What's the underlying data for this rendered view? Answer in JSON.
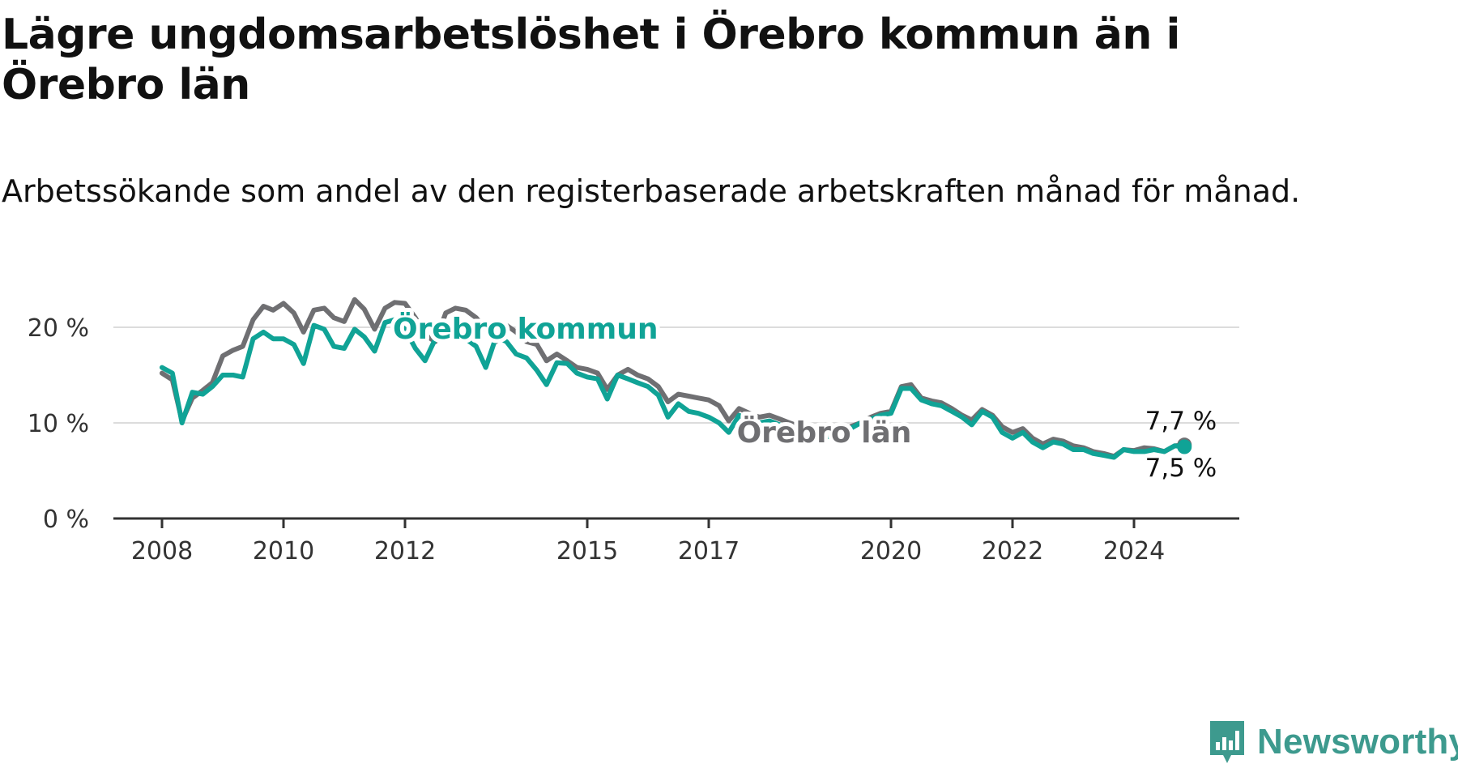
{
  "header": {
    "title": "Lägre ungdomsarbetslöshet i Örebro kommun än i Örebro län",
    "subtitle": "Arbetssökande som andel av den registerbaserade arbetskraften månad för månad."
  },
  "logo": {
    "text": "Newsworthy",
    "icon": "newsworthy-chart-icon",
    "color": "#3d9a8e"
  },
  "chart_data": {
    "type": "line",
    "x_ticks": [
      "2008",
      "2010",
      "2012",
      "2015",
      "2017",
      "2020",
      "2022",
      "2024"
    ],
    "y_ticks": [
      "0 %",
      "10 %",
      "20 %"
    ],
    "ylim": [
      0,
      25
    ],
    "grid": true,
    "series": [
      {
        "name": "Örebro län",
        "color": "#6f6f72",
        "end_label": "7,7 %",
        "x": [
          2008.0,
          2008.17,
          2008.33,
          2008.5,
          2008.67,
          2008.83,
          2009.0,
          2009.17,
          2009.33,
          2009.5,
          2009.67,
          2009.83,
          2010.0,
          2010.17,
          2010.33,
          2010.5,
          2010.67,
          2010.83,
          2011.0,
          2011.17,
          2011.33,
          2011.5,
          2011.67,
          2011.83,
          2012.0,
          2012.17,
          2012.33,
          2012.5,
          2012.67,
          2012.83,
          2013.0,
          2013.17,
          2013.33,
          2013.5,
          2013.67,
          2013.83,
          2014.0,
          2014.17,
          2014.33,
          2014.5,
          2014.67,
          2014.83,
          2015.0,
          2015.17,
          2015.33,
          2015.5,
          2015.67,
          2015.83,
          2016.0,
          2016.17,
          2016.33,
          2016.5,
          2016.67,
          2016.83,
          2017.0,
          2017.17,
          2017.33,
          2017.5,
          2017.67,
          2017.83,
          2018.0,
          2018.17,
          2018.33,
          2018.5,
          2018.67,
          2018.83,
          2019.0,
          2019.17,
          2019.33,
          2019.5,
          2019.67,
          2019.83,
          2020.0,
          2020.17,
          2020.33,
          2020.5,
          2020.67,
          2020.83,
          2021.0,
          2021.17,
          2021.33,
          2021.5,
          2021.67,
          2021.83,
          2022.0,
          2022.17,
          2022.33,
          2022.5,
          2022.67,
          2022.83,
          2023.0,
          2023.17,
          2023.33,
          2023.5,
          2023.67,
          2023.83,
          2024.0,
          2024.17,
          2024.33,
          2024.5,
          2024.67,
          2024.83
        ],
        "values": [
          15.2,
          14.5,
          10.2,
          12.6,
          13.4,
          14.2,
          17.0,
          17.6,
          18.0,
          20.8,
          22.2,
          21.8,
          22.5,
          21.5,
          19.5,
          21.8,
          22.0,
          21.0,
          20.6,
          22.9,
          21.9,
          19.8,
          22.0,
          22.6,
          22.5,
          21.0,
          19.2,
          18.5,
          21.5,
          22.0,
          21.8,
          21.0,
          19.8,
          18.5,
          20.2,
          19.5,
          18.5,
          18.2,
          16.5,
          17.2,
          16.5,
          15.8,
          15.6,
          15.2,
          13.5,
          15.0,
          15.6,
          15.0,
          14.6,
          13.8,
          12.2,
          13.0,
          12.8,
          12.6,
          12.4,
          11.8,
          10.2,
          11.5,
          11.0,
          10.6,
          10.8,
          10.4,
          10.0,
          9.6,
          9.2,
          9.0,
          9.0,
          9.2,
          9.6,
          10.0,
          10.6,
          11.0,
          11.2,
          13.8,
          14.0,
          12.6,
          12.3,
          12.1,
          11.5,
          10.8,
          10.3,
          11.4,
          10.8,
          9.6,
          9.0,
          9.4,
          8.4,
          7.8,
          8.3,
          8.1,
          7.6,
          7.4,
          7.0,
          6.8,
          6.5,
          7.2,
          7.1,
          7.4,
          7.3,
          7.0,
          7.6,
          7.7
        ]
      },
      {
        "name": "Örebro kommun",
        "color": "#10a396",
        "end_label": "7,5 %",
        "x": [
          2008.0,
          2008.17,
          2008.33,
          2008.5,
          2008.67,
          2008.83,
          2009.0,
          2009.17,
          2009.33,
          2009.5,
          2009.67,
          2009.83,
          2010.0,
          2010.17,
          2010.33,
          2010.5,
          2010.67,
          2010.83,
          2011.0,
          2011.17,
          2011.33,
          2011.5,
          2011.67,
          2011.83,
          2012.0,
          2012.17,
          2012.33,
          2012.5,
          2012.67,
          2012.83,
          2013.0,
          2013.17,
          2013.33,
          2013.5,
          2013.67,
          2013.83,
          2014.0,
          2014.17,
          2014.33,
          2014.5,
          2014.67,
          2014.83,
          2015.0,
          2015.17,
          2015.33,
          2015.5,
          2015.67,
          2015.83,
          2016.0,
          2016.17,
          2016.33,
          2016.5,
          2016.67,
          2016.83,
          2017.0,
          2017.17,
          2017.33,
          2017.5,
          2017.67,
          2017.83,
          2018.0,
          2018.17,
          2018.33,
          2018.5,
          2018.67,
          2018.83,
          2019.0,
          2019.17,
          2019.33,
          2019.5,
          2019.67,
          2019.83,
          2020.0,
          2020.17,
          2020.33,
          2020.5,
          2020.67,
          2020.83,
          2021.0,
          2021.17,
          2021.33,
          2021.5,
          2021.67,
          2021.83,
          2022.0,
          2022.17,
          2022.33,
          2022.5,
          2022.67,
          2022.83,
          2023.0,
          2023.17,
          2023.33,
          2023.5,
          2023.67,
          2023.83,
          2024.0,
          2024.17,
          2024.33,
          2024.5,
          2024.67,
          2024.83
        ],
        "values": [
          15.8,
          15.2,
          10.0,
          13.2,
          13.0,
          13.8,
          15.0,
          15.0,
          14.8,
          18.8,
          19.5,
          18.8,
          18.8,
          18.2,
          16.2,
          20.2,
          19.8,
          18.0,
          17.8,
          19.8,
          19.0,
          17.5,
          20.5,
          20.8,
          19.8,
          17.8,
          16.5,
          18.8,
          20.0,
          19.5,
          18.8,
          18.0,
          15.8,
          19.0,
          18.5,
          17.2,
          16.8,
          15.5,
          14.0,
          16.3,
          16.2,
          15.2,
          14.8,
          14.6,
          12.5,
          15.0,
          14.6,
          14.2,
          13.8,
          12.9,
          10.6,
          12.0,
          11.2,
          11.0,
          10.6,
          10.0,
          9.0,
          10.8,
          10.2,
          10.0,
          10.2,
          9.8,
          9.4,
          9.0,
          8.6,
          8.4,
          8.6,
          8.8,
          9.4,
          10.0,
          10.4,
          10.8,
          11.0,
          13.6,
          13.6,
          12.4,
          12.0,
          11.8,
          11.2,
          10.6,
          9.8,
          11.2,
          10.6,
          9.0,
          8.4,
          9.0,
          8.0,
          7.4,
          8.0,
          7.8,
          7.2,
          7.2,
          6.8,
          6.6,
          6.4,
          7.2,
          7.0,
          7.0,
          7.2,
          7.0,
          7.6,
          7.5
        ]
      }
    ]
  }
}
